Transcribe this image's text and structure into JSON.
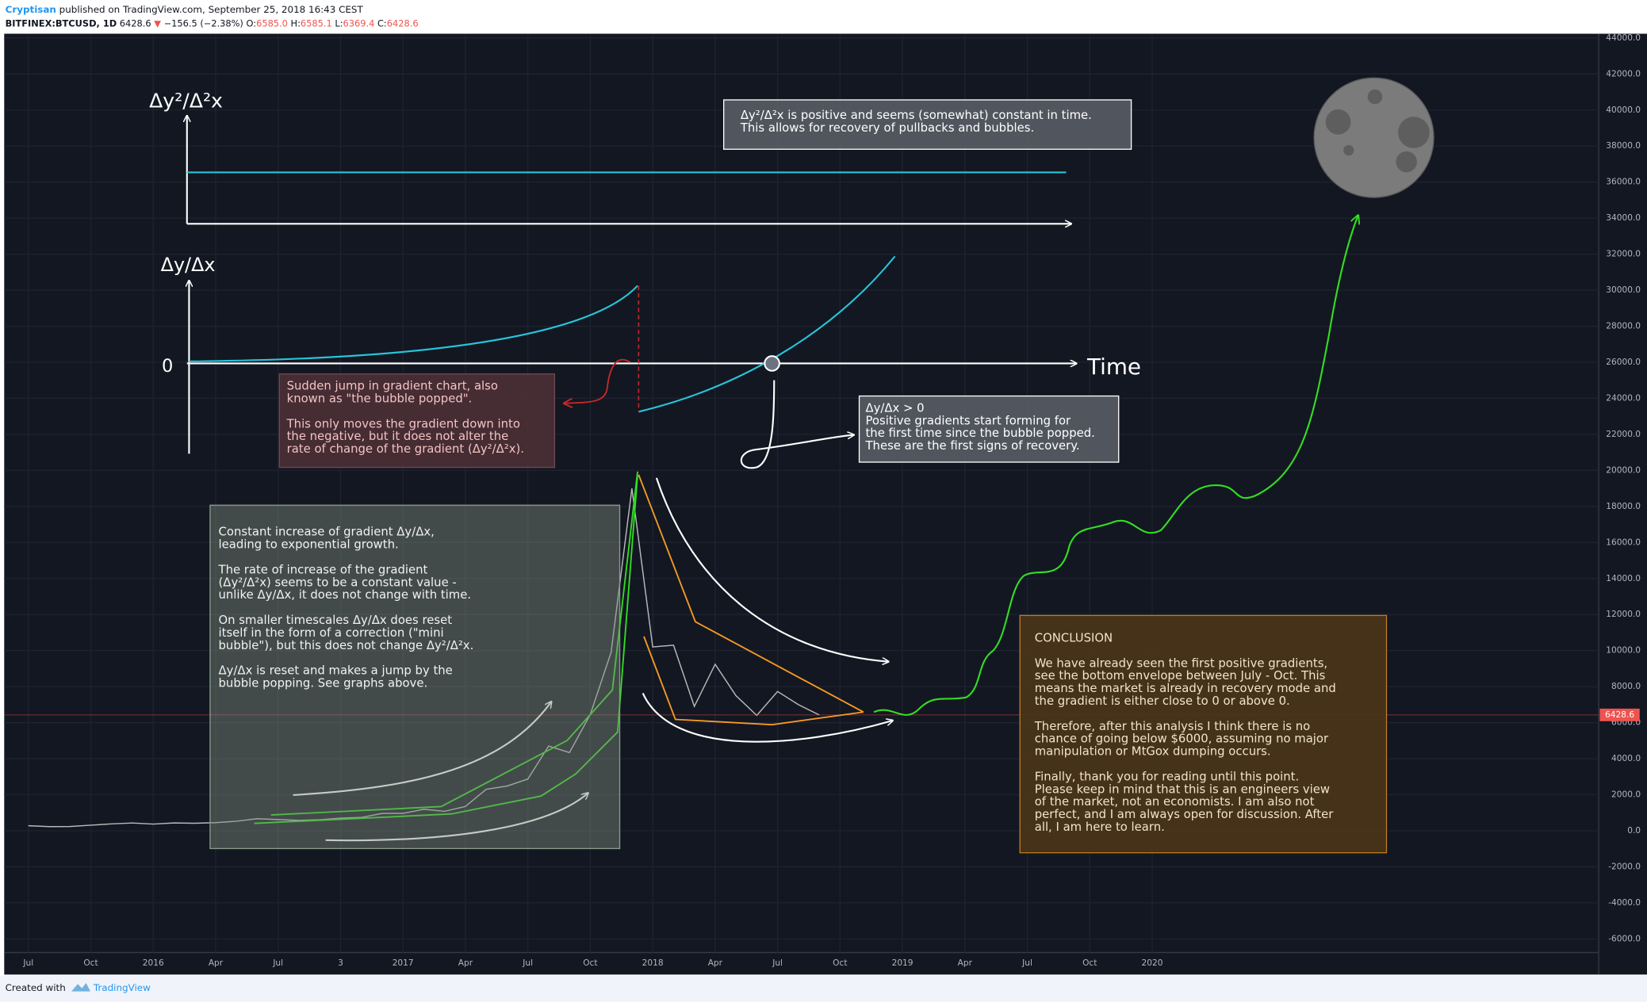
{
  "header": {
    "author": "Cryptisan",
    "published": "published on TradingView.com, September 25, 2018 16:43 CEST",
    "symbol": "BITFINEX:BTCUSD, 1D",
    "last": "6428.6",
    "arrow": "▼",
    "change": "−156.5 (−2.38%)",
    "open_label": "O:",
    "open": "6585.0",
    "high_label": "H:",
    "high": "6585.1",
    "low_label": "L:",
    "low": "6369.4",
    "close_label": "C:",
    "close": "6428.6"
  },
  "chart_data": {
    "type": "line",
    "color": "#b8b8b8",
    "categories": [
      "Jul",
      null,
      null,
      "Oct",
      null,
      null,
      "2016",
      null,
      null,
      "Apr",
      null,
      null,
      "Jul",
      null,
      null,
      "3",
      null,
      null,
      "2017",
      null,
      null,
      "Apr",
      null,
      null,
      "Jul",
      null,
      null,
      "Oct",
      null,
      null,
      "2018",
      null,
      null,
      "Apr",
      null,
      null,
      "Jul",
      null,
      null,
      "Oct",
      null,
      null,
      "2019",
      null,
      null,
      "Apr",
      null,
      null,
      "Jul",
      null,
      null,
      "Oct",
      null,
      null,
      "2020"
    ],
    "values": [
      280,
      230,
      235,
      310,
      380,
      430,
      370,
      435,
      415,
      450,
      530,
      670,
      620,
      575,
      610,
      700,
      740,
      960,
      965,
      1190,
      1080,
      1350,
      2300,
      2480,
      2870,
      4700,
      4340,
      6450,
      9900,
      19000,
      10200,
      10300,
      6900,
      9240,
      7500,
      6400,
      7730,
      7000,
      6428.6,
      null,
      null,
      null,
      null,
      null,
      null,
      null,
      null,
      null,
      null,
      null,
      null,
      null,
      null,
      null,
      null
    ],
    "ylim": [
      -6758,
      44175
    ],
    "yticks": [
      {
        "value": 44000,
        "label": "44000.0"
      },
      {
        "value": 42000,
        "label": "42000.0"
      },
      {
        "value": 40000,
        "label": "40000.0"
      },
      {
        "value": 38000,
        "label": "38000.0"
      },
      {
        "value": 36000,
        "label": "36000.0"
      },
      {
        "value": 34000,
        "label": "34000.0"
      },
      {
        "value": 32000,
        "label": "32000.0"
      },
      {
        "value": 30000,
        "label": "30000.0"
      },
      {
        "value": 28000,
        "label": "28000.0"
      },
      {
        "value": 26000,
        "label": "26000.0"
      },
      {
        "value": 24000,
        "label": "24000.0"
      },
      {
        "value": 22000,
        "label": "22000.0"
      },
      {
        "value": 20000,
        "label": "20000.0"
      },
      {
        "value": 18000,
        "label": "18000.0"
      },
      {
        "value": 16000,
        "label": "16000.0"
      },
      {
        "value": 14000,
        "label": "14000.0"
      },
      {
        "value": 12000,
        "label": "12000.0"
      },
      {
        "value": 10000,
        "label": "10000.0"
      },
      {
        "value": 8000,
        "label": "8000.0"
      },
      {
        "value": 6000,
        "label": "6000.0"
      },
      {
        "value": 4000,
        "label": "4000.0"
      },
      {
        "value": 2000,
        "label": "2000.0"
      },
      {
        "value": 0,
        "label": "0.0"
      },
      {
        "value": -2000,
        "label": "-2000.0"
      },
      {
        "value": -4000,
        "label": "-4000.0"
      },
      {
        "value": -6000,
        "label": "-6000.0"
      }
    ],
    "grid": true
  },
  "drawing_labels": {
    "second_derivative": "Δy²/Δ²x",
    "first_derivative": "Δy/Δx",
    "zero": "0",
    "time": "Time"
  },
  "notes": {
    "top": {
      "paragraphs": [
        [
          "Δy²/Δ²x is positive and seems (somewhat) constant in time.",
          "This allows for recovery of pullbacks and bubbles."
        ]
      ]
    },
    "bubble": {
      "paragraphs": [
        [
          "Sudden jump in gradient chart, also",
          "known as \"the bubble popped\"."
        ],
        [
          "This only moves the gradient down into",
          "the negative, but it does not alter the",
          "rate of change of the gradient (Δy²/Δ²x)."
        ]
      ]
    },
    "recovery": {
      "paragraphs": [
        [
          "Δy/Δx > 0",
          "Positive gradients start forming for",
          "the first time since the bubble popped.",
          "These are the first signs of recovery."
        ]
      ]
    },
    "growth": {
      "paragraphs": [
        [
          "Constant increase of gradient Δy/Δx,",
          "leading to exponential growth."
        ],
        [
          "The rate of increase of the gradient",
          "(Δy²/Δ²x) seems to be a constant value -",
          "unlike Δy/Δx, it does not change with time."
        ],
        [
          "On smaller timescales Δy/Δx does reset",
          "itself in the form of a correction (\"mini",
          "bubble\"), but this does not change Δy²/Δ²x."
        ],
        [
          "Δy/Δx is reset and makes a jump by the",
          "bubble popping. See graphs above."
        ]
      ]
    },
    "conclusion": {
      "paragraphs": [
        [
          "CONCLUSION"
        ],
        [
          "We have already seen the first positive gradients,",
          "see the bottom envelope between July - Oct. This",
          "means the market is already in recovery mode and",
          "the gradient is either close to 0 or above 0."
        ],
        [
          "Therefore, after this analysis I think there is no",
          "chance of going below $6000, assuming no major",
          "manipulation or MtGox dumping occurs."
        ],
        [
          "Finally, thank you for reading until this point.",
          "Please keep in mind that this is an engineers view",
          "of the market, not an economists. I am also not",
          "perfect, and I am always open for discussion. After",
          "all, I am here to learn."
        ]
      ]
    }
  },
  "footer": {
    "created": "Created with",
    "brand": "TradingView"
  }
}
